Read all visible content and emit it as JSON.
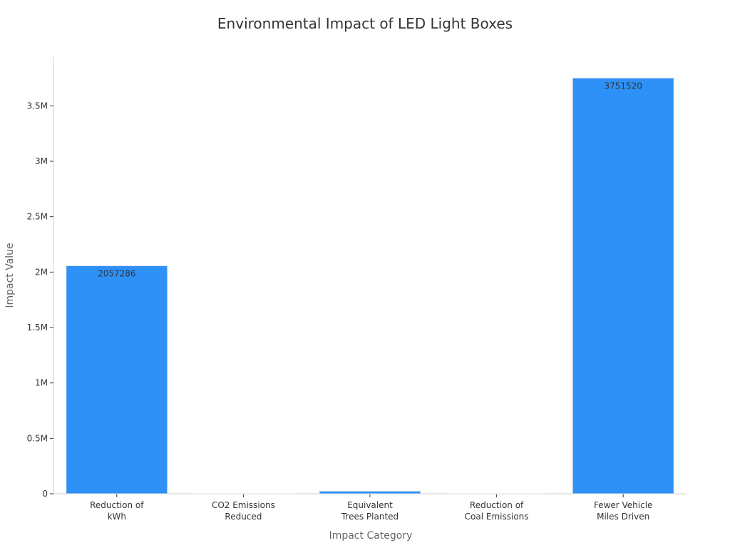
{
  "chart_data": {
    "type": "bar",
    "title": "Environmental Impact of LED Light Boxes",
    "xlabel": "Impact Category",
    "ylabel": "Impact Value",
    "categories": [
      [
        "Reduction of",
        "kWh"
      ],
      [
        "CO2 Emissions",
        "Reduced"
      ],
      [
        "Equivalent",
        "Trees Planted"
      ],
      [
        "Reduction of",
        "Coal Emissions"
      ],
      [
        "Fewer Vehicle",
        "Miles Driven"
      ]
    ],
    "values": [
      2057286,
      1440,
      23800,
      1000,
      3751520
    ],
    "data_labels": [
      "2057286",
      "",
      "",
      "",
      "3751520"
    ],
    "y_ticks": [
      {
        "value": 0,
        "label": "0"
      },
      {
        "value": 500000,
        "label": "0.5M"
      },
      {
        "value": 1000000,
        "label": "1M"
      },
      {
        "value": 1500000,
        "label": "1.5M"
      },
      {
        "value": 2000000,
        "label": "2M"
      },
      {
        "value": 2500000,
        "label": "2.5M"
      },
      {
        "value": 3000000,
        "label": "3M"
      },
      {
        "value": 3500000,
        "label": "3.5M"
      }
    ],
    "ylim": [
      0,
      3940000
    ],
    "grid": false,
    "legend": "none",
    "bar_color": "#2E91F7"
  }
}
